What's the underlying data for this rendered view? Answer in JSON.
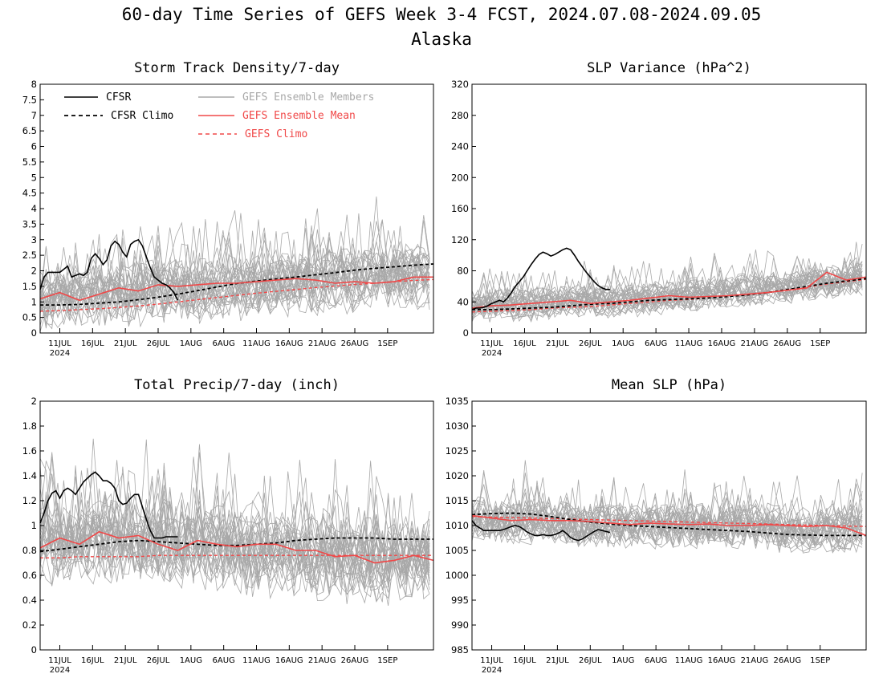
{
  "title": "60-day Time Series of GEFS Week 3-4 FCST, 2024.07.08-2024.09.05",
  "subtitle": "Alaska",
  "colors": {
    "cfsr": "#000000",
    "members": "#a8a8a8",
    "ens_mean": "#f04848",
    "gefs_climo": "#f04848"
  },
  "chart_data": [
    {
      "type": "line",
      "title": "Storm Track Density/7-day",
      "ylim": [
        0,
        8
      ],
      "yticks": [
        "0",
        "0.5",
        "1",
        "1.5",
        "2",
        "2.5",
        "3",
        "3.5",
        "4",
        "4.5",
        "5",
        "5.5",
        "6",
        "6.5",
        "7",
        "7.5",
        "8"
      ],
      "xtick_labels": [
        "11JUL",
        "16JUL",
        "21JUL",
        "26JUL",
        "1AUG",
        "6AUG",
        "11AUG",
        "16AUG",
        "21AUG",
        "26AUG",
        "1SEP"
      ],
      "year_label": "2024",
      "legend": [
        "CFSR",
        "CFSR Climo",
        "GEFS Ensemble Members",
        "GEFS Ensemble Mean",
        "GEFS Climo"
      ],
      "members": {
        "count": 30,
        "center": [
          1.0,
          1.1,
          1.2,
          1.3,
          1.3,
          1.4,
          1.5,
          1.5,
          1.6,
          1.7,
          1.8,
          1.8
        ],
        "spread": 1.3
      },
      "series": [
        {
          "name": "CFSR",
          "x": [
            0,
            2,
            4,
            6,
            8,
            10,
            12,
            14,
            16,
            18,
            20,
            22,
            24,
            26,
            28,
            30,
            32,
            34,
            36,
            38,
            40,
            42,
            44,
            46,
            48,
            50,
            52,
            54,
            56,
            58,
            60,
            62,
            64,
            66,
            68,
            70
          ],
          "y": [
            1.4,
            1.8,
            1.95,
            1.95,
            1.95,
            1.95,
            2.05,
            2.15,
            1.8,
            1.85,
            1.9,
            1.85,
            1.95,
            2.4,
            2.55,
            2.4,
            2.2,
            2.35,
            2.8,
            2.95,
            2.85,
            2.6,
            2.45,
            2.85,
            2.95,
            3.0,
            2.8,
            2.45,
            2.1,
            1.8,
            1.7,
            1.6,
            1.55,
            1.45,
            1.3,
            1.05
          ]
        },
        {
          "name": "CFSR Climo",
          "x": [
            0,
            10,
            20,
            30,
            40,
            50,
            60,
            70,
            80,
            90,
            100,
            110,
            120,
            130,
            140,
            150,
            160,
            170,
            180,
            190,
            200
          ],
          "y": [
            0.9,
            0.9,
            0.92,
            0.96,
            1.0,
            1.07,
            1.15,
            1.25,
            1.36,
            1.48,
            1.59,
            1.67,
            1.74,
            1.8,
            1.87,
            1.94,
            2.02,
            2.08,
            2.13,
            2.18,
            2.22
          ]
        },
        {
          "name": "GEFS Ensemble Mean",
          "x": [
            0,
            10,
            20,
            30,
            40,
            50,
            60,
            70,
            80,
            90,
            100,
            110,
            120,
            130,
            140,
            150,
            160,
            170,
            180,
            190,
            200
          ],
          "y": [
            1.1,
            1.3,
            1.05,
            1.25,
            1.45,
            1.35,
            1.55,
            1.5,
            1.55,
            1.6,
            1.6,
            1.65,
            1.7,
            1.75,
            1.7,
            1.6,
            1.65,
            1.6,
            1.65,
            1.8,
            1.8
          ]
        },
        {
          "name": "GEFS Climo",
          "x": [
            0,
            10,
            20,
            30,
            40,
            50,
            60,
            70,
            80,
            90,
            100,
            110,
            120,
            130,
            140,
            150,
            160,
            170,
            180,
            190,
            200
          ],
          "y": [
            0.7,
            0.72,
            0.75,
            0.78,
            0.82,
            0.87,
            0.93,
            1.0,
            1.07,
            1.14,
            1.21,
            1.28,
            1.34,
            1.4,
            1.46,
            1.51,
            1.56,
            1.6,
            1.65,
            1.69,
            1.72
          ]
        }
      ]
    },
    {
      "type": "line",
      "title": "SLP Variance (hPa^2)",
      "ylim": [
        0,
        320
      ],
      "yticks": [
        "0",
        "40",
        "80",
        "120",
        "160",
        "200",
        "240",
        "280",
        "320"
      ],
      "xtick_labels": [
        "11JUL",
        "16JUL",
        "21JUL",
        "26JUL",
        "1AUG",
        "6AUG",
        "11AUG",
        "16AUG",
        "21AUG",
        "26AUG",
        "1SEP"
      ],
      "year_label": "2024",
      "members": {
        "count": 30,
        "center": [
          35,
          36,
          38,
          40,
          42,
          45,
          48,
          52,
          55,
          60,
          65,
          72
        ],
        "spread": 28
      },
      "series": [
        {
          "name": "CFSR",
          "x": [
            0,
            2,
            4,
            6,
            8,
            10,
            12,
            14,
            16,
            18,
            20,
            22,
            24,
            26,
            28,
            30,
            32,
            34,
            36,
            38,
            40,
            42,
            44,
            46,
            48,
            50,
            52,
            54,
            56,
            58,
            60,
            62,
            64,
            66,
            68,
            70
          ],
          "y": [
            30,
            32,
            32,
            33,
            35,
            38,
            40,
            42,
            40,
            45,
            52,
            60,
            66,
            72,
            80,
            88,
            95,
            101,
            104,
            102,
            99,
            101,
            104,
            107,
            109,
            107,
            100,
            92,
            85,
            78,
            72,
            66,
            61,
            58,
            56,
            56
          ]
        },
        {
          "name": "CFSR Climo",
          "x": [
            0,
            10,
            20,
            30,
            40,
            50,
            60,
            70,
            80,
            90,
            100,
            110,
            120,
            130,
            140,
            150,
            160,
            170,
            180,
            190,
            200
          ],
          "y": [
            30,
            30,
            31,
            32,
            33,
            35,
            37,
            38,
            40,
            42,
            43,
            44,
            45,
            47,
            49,
            52,
            56,
            60,
            64,
            67,
            70
          ]
        },
        {
          "name": "GEFS Ensemble Mean",
          "x": [
            0,
            10,
            20,
            30,
            40,
            50,
            60,
            70,
            80,
            90,
            100,
            110,
            120,
            130,
            140,
            150,
            160,
            170,
            180,
            190,
            200
          ],
          "y": [
            32,
            35,
            36,
            38,
            40,
            42,
            38,
            40,
            42,
            45,
            48,
            46,
            47,
            48,
            50,
            52,
            55,
            58,
            78,
            68,
            72
          ]
        },
        {
          "name": "GEFS Climo",
          "x": [
            0,
            10,
            20,
            30,
            40,
            50,
            60,
            70,
            80,
            90,
            100,
            110,
            120,
            130,
            140,
            150,
            160,
            170,
            180,
            190,
            200
          ],
          "y": [
            27,
            28,
            29,
            30,
            32,
            33,
            34,
            36,
            38,
            40,
            42,
            43,
            45,
            47,
            49,
            52,
            55,
            59,
            63,
            66,
            69
          ]
        }
      ]
    },
    {
      "type": "line",
      "title": "Total Precip/7-day (inch)",
      "ylim": [
        0,
        2
      ],
      "yticks": [
        "0",
        "0.2",
        "0.4",
        "0.6",
        "0.8",
        "1",
        "1.2",
        "1.4",
        "1.6",
        "1.8",
        "2"
      ],
      "xtick_labels": [
        "11JUL",
        "16JUL",
        "21JUL",
        "26JUL",
        "1AUG",
        "6AUG",
        "11AUG",
        "16AUG",
        "21AUG",
        "26AUG",
        "1SEP"
      ],
      "year_label": "2024",
      "members": {
        "count": 30,
        "center": [
          0.88,
          0.9,
          0.9,
          0.86,
          0.85,
          0.82,
          0.8,
          0.78,
          0.75,
          0.72,
          0.72,
          0.74
        ],
        "spread": 0.45
      },
      "series": [
        {
          "name": "CFSR",
          "x": [
            0,
            2,
            4,
            6,
            8,
            10,
            12,
            14,
            16,
            18,
            20,
            22,
            24,
            26,
            28,
            30,
            32,
            34,
            36,
            38,
            40,
            42,
            44,
            46,
            48,
            50,
            52,
            54,
            56,
            58,
            60,
            62,
            64,
            66,
            68,
            70
          ],
          "y": [
            1.02,
            1.1,
            1.2,
            1.26,
            1.28,
            1.22,
            1.28,
            1.3,
            1.28,
            1.25,
            1.3,
            1.35,
            1.38,
            1.41,
            1.43,
            1.4,
            1.36,
            1.36,
            1.34,
            1.3,
            1.2,
            1.17,
            1.18,
            1.22,
            1.25,
            1.25,
            1.15,
            1.05,
            0.96,
            0.9,
            0.9,
            0.9,
            0.91,
            0.91,
            0.91,
            0.91
          ]
        },
        {
          "name": "CFSR Climo",
          "x": [
            0,
            10,
            20,
            30,
            40,
            50,
            60,
            70,
            80,
            90,
            100,
            110,
            120,
            130,
            140,
            150,
            160,
            170,
            180,
            190,
            200
          ],
          "y": [
            0.79,
            0.81,
            0.83,
            0.85,
            0.87,
            0.88,
            0.87,
            0.86,
            0.85,
            0.84,
            0.84,
            0.85,
            0.86,
            0.88,
            0.89,
            0.9,
            0.9,
            0.9,
            0.89,
            0.89,
            0.89
          ]
        },
        {
          "name": "GEFS Ensemble Mean",
          "x": [
            0,
            10,
            20,
            30,
            40,
            50,
            60,
            70,
            80,
            90,
            100,
            110,
            120,
            130,
            140,
            150,
            160,
            170,
            180,
            190,
            200
          ],
          "y": [
            0.82,
            0.9,
            0.85,
            0.95,
            0.9,
            0.92,
            0.85,
            0.8,
            0.88,
            0.85,
            0.83,
            0.85,
            0.85,
            0.8,
            0.8,
            0.75,
            0.76,
            0.7,
            0.72,
            0.76,
            0.72
          ]
        },
        {
          "name": "GEFS Climo",
          "x": [
            0,
            10,
            20,
            30,
            40,
            50,
            60,
            70,
            80,
            90,
            100,
            110,
            120,
            130,
            140,
            150,
            160,
            170,
            180,
            190,
            200
          ],
          "y": [
            0.74,
            0.74,
            0.75,
            0.75,
            0.75,
            0.75,
            0.76,
            0.76,
            0.76,
            0.76,
            0.76,
            0.76,
            0.76,
            0.76,
            0.76,
            0.76,
            0.76,
            0.76,
            0.76,
            0.76,
            0.76
          ]
        }
      ]
    },
    {
      "type": "line",
      "title": "Mean SLP (hPa)",
      "ylim": [
        985,
        1035
      ],
      "yticks": [
        "985",
        "990",
        "995",
        "1000",
        "1005",
        "1010",
        "1015",
        "1020",
        "1025",
        "1030",
        "1035"
      ],
      "xtick_labels": [
        "11JUL",
        "16JUL",
        "21JUL",
        "26JUL",
        "1AUG",
        "6AUG",
        "11AUG",
        "16AUG",
        "21AUG",
        "26AUG",
        "1SEP"
      ],
      "year_label": "2024",
      "members": {
        "count": 30,
        "center": [
          1011,
          1011,
          1011,
          1010,
          1010,
          1010,
          1010,
          1010,
          1010,
          1009,
          1009,
          1009
        ],
        "spread": 6
      },
      "series": [
        {
          "name": "CFSR",
          "x": [
            0,
            2,
            4,
            6,
            8,
            10,
            12,
            14,
            16,
            18,
            20,
            22,
            24,
            26,
            28,
            30,
            32,
            34,
            36,
            38,
            40,
            42,
            44,
            46,
            48,
            50,
            52,
            54,
            56,
            58,
            60,
            62,
            64,
            66,
            68,
            70
          ],
          "y": [
            1011,
            1010,
            1009.5,
            1009,
            1009,
            1009,
            1009,
            1009,
            1009.2,
            1009.5,
            1009.8,
            1010,
            1009.8,
            1009.3,
            1008.7,
            1008.3,
            1008,
            1008,
            1008.2,
            1008,
            1008,
            1008.2,
            1008.5,
            1009,
            1008.4,
            1007.6,
            1007.2,
            1007,
            1007.3,
            1007.8,
            1008.3,
            1008.8,
            1009.2,
            1009,
            1008.8,
            1008.6
          ]
        },
        {
          "name": "CFSR Climo",
          "x": [
            0,
            10,
            20,
            30,
            40,
            50,
            60,
            70,
            80,
            90,
            100,
            110,
            120,
            130,
            140,
            150,
            160,
            170,
            180,
            190,
            200
          ],
          "y": [
            1012.2,
            1012.4,
            1012.5,
            1012.3,
            1011.8,
            1011.2,
            1010.7,
            1010.3,
            1010,
            1009.8,
            1009.6,
            1009.4,
            1009.2,
            1009,
            1008.8,
            1008.5,
            1008.2,
            1008.1,
            1008,
            1008,
            1008
          ]
        },
        {
          "name": "GEFS Ensemble Mean",
          "x": [
            0,
            10,
            20,
            30,
            40,
            50,
            60,
            70,
            80,
            90,
            100,
            110,
            120,
            130,
            140,
            150,
            160,
            170,
            180,
            190,
            200
          ],
          "y": [
            1012,
            1011.5,
            1011,
            1011.2,
            1011,
            1011,
            1010.8,
            1010.5,
            1010.2,
            1010.5,
            1010.3,
            1010.2,
            1010.3,
            1010,
            1010,
            1010.2,
            1010,
            1009.8,
            1010,
            1009.5,
            1008
          ]
        },
        {
          "name": "GEFS Climo",
          "x": [
            0,
            10,
            20,
            30,
            40,
            50,
            60,
            70,
            80,
            90,
            100,
            110,
            120,
            130,
            140,
            150,
            160,
            170,
            180,
            190,
            200
          ],
          "y": [
            1011.8,
            1011.7,
            1011.6,
            1011.5,
            1011.4,
            1011.3,
            1011.2,
            1011.1,
            1011,
            1010.9,
            1010.8,
            1010.7,
            1010.6,
            1010.5,
            1010.4,
            1010.3,
            1010.2,
            1010.1,
            1010,
            1009.9,
            1009.8
          ]
        }
      ]
    }
  ]
}
